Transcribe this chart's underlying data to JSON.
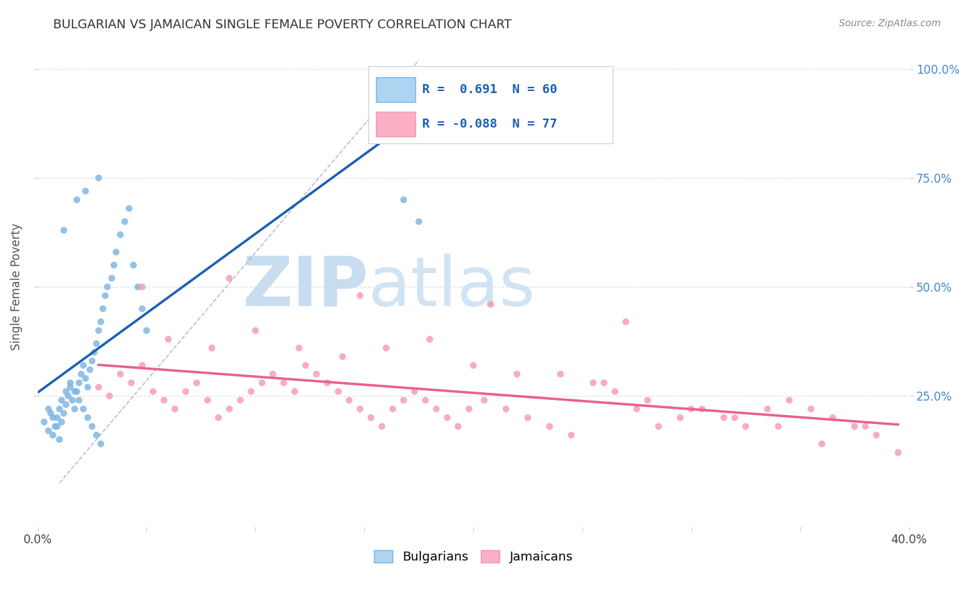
{
  "title": "BULGARIAN VS JAMAICAN SINGLE FEMALE POVERTY CORRELATION CHART",
  "source": "Source: ZipAtlas.com",
  "ylabel": "Single Female Poverty",
  "ytick_labels": [
    "100.0%",
    "75.0%",
    "50.0%",
    "25.0%"
  ],
  "ytick_values": [
    1.0,
    0.75,
    0.5,
    0.25
  ],
  "xlim": [
    0.0,
    0.4
  ],
  "ylim": [
    -0.05,
    1.05
  ],
  "bg_color": "#ffffff",
  "grid_color": "#d8d8d8",
  "watermark_zip": "ZIP",
  "watermark_atlas": "atlas",
  "watermark_color": "#c8ddf0",
  "bulgarian_color": "#7ab3e0",
  "jamaican_color": "#f797b0",
  "legend_bulgarian_R": " 0.691",
  "legend_bulgarian_N": "60",
  "legend_jamaican_R": "-0.088",
  "legend_jamaican_N": "77",
  "blue_regression_color": "#1a5fb4",
  "pink_regression_color": "#e8608a",
  "dashed_line_color": "#aaaacc",
  "bulgarian_x": [
    0.003,
    0.005,
    0.006,
    0.007,
    0.008,
    0.009,
    0.01,
    0.01,
    0.011,
    0.012,
    0.013,
    0.014,
    0.015,
    0.016,
    0.017,
    0.018,
    0.019,
    0.02,
    0.021,
    0.022,
    0.023,
    0.024,
    0.025,
    0.026,
    0.027,
    0.028,
    0.029,
    0.03,
    0.031,
    0.032,
    0.034,
    0.035,
    0.036,
    0.038,
    0.04,
    0.042,
    0.044,
    0.046,
    0.048,
    0.05,
    0.005,
    0.007,
    0.009,
    0.011,
    0.013,
    0.015,
    0.017,
    0.019,
    0.021,
    0.023,
    0.025,
    0.027,
    0.029,
    0.012,
    0.018,
    0.022,
    0.028,
    0.16,
    0.168,
    0.175
  ],
  "bulgarian_y": [
    0.19,
    0.17,
    0.21,
    0.16,
    0.18,
    0.2,
    0.22,
    0.15,
    0.19,
    0.21,
    0.23,
    0.25,
    0.27,
    0.24,
    0.22,
    0.26,
    0.28,
    0.3,
    0.32,
    0.29,
    0.27,
    0.31,
    0.33,
    0.35,
    0.37,
    0.4,
    0.42,
    0.45,
    0.48,
    0.5,
    0.52,
    0.55,
    0.58,
    0.62,
    0.65,
    0.68,
    0.55,
    0.5,
    0.45,
    0.4,
    0.22,
    0.2,
    0.18,
    0.24,
    0.26,
    0.28,
    0.26,
    0.24,
    0.22,
    0.2,
    0.18,
    0.16,
    0.14,
    0.63,
    0.7,
    0.72,
    0.75,
    0.975,
    0.7,
    0.65
  ],
  "jamaican_x": [
    0.028,
    0.033,
    0.038,
    0.043,
    0.048,
    0.053,
    0.058,
    0.063,
    0.068,
    0.073,
    0.078,
    0.083,
    0.088,
    0.093,
    0.098,
    0.103,
    0.108,
    0.113,
    0.118,
    0.123,
    0.128,
    0.133,
    0.138,
    0.143,
    0.148,
    0.153,
    0.158,
    0.163,
    0.168,
    0.173,
    0.178,
    0.183,
    0.188,
    0.193,
    0.198,
    0.205,
    0.215,
    0.225,
    0.235,
    0.245,
    0.255,
    0.265,
    0.275,
    0.285,
    0.295,
    0.305,
    0.315,
    0.325,
    0.335,
    0.345,
    0.355,
    0.365,
    0.375,
    0.385,
    0.395,
    0.06,
    0.08,
    0.1,
    0.12,
    0.14,
    0.16,
    0.18,
    0.2,
    0.22,
    0.24,
    0.26,
    0.28,
    0.3,
    0.32,
    0.34,
    0.36,
    0.048,
    0.088,
    0.148,
    0.208,
    0.27,
    0.38
  ],
  "jamaican_y": [
    0.27,
    0.25,
    0.3,
    0.28,
    0.32,
    0.26,
    0.24,
    0.22,
    0.26,
    0.28,
    0.24,
    0.2,
    0.22,
    0.24,
    0.26,
    0.28,
    0.3,
    0.28,
    0.26,
    0.32,
    0.3,
    0.28,
    0.26,
    0.24,
    0.22,
    0.2,
    0.18,
    0.22,
    0.24,
    0.26,
    0.24,
    0.22,
    0.2,
    0.18,
    0.22,
    0.24,
    0.22,
    0.2,
    0.18,
    0.16,
    0.28,
    0.26,
    0.22,
    0.18,
    0.2,
    0.22,
    0.2,
    0.18,
    0.22,
    0.24,
    0.22,
    0.2,
    0.18,
    0.16,
    0.12,
    0.38,
    0.36,
    0.4,
    0.36,
    0.34,
    0.36,
    0.38,
    0.32,
    0.3,
    0.3,
    0.28,
    0.24,
    0.22,
    0.2,
    0.18,
    0.14,
    0.5,
    0.52,
    0.48,
    0.46,
    0.42,
    0.18
  ]
}
